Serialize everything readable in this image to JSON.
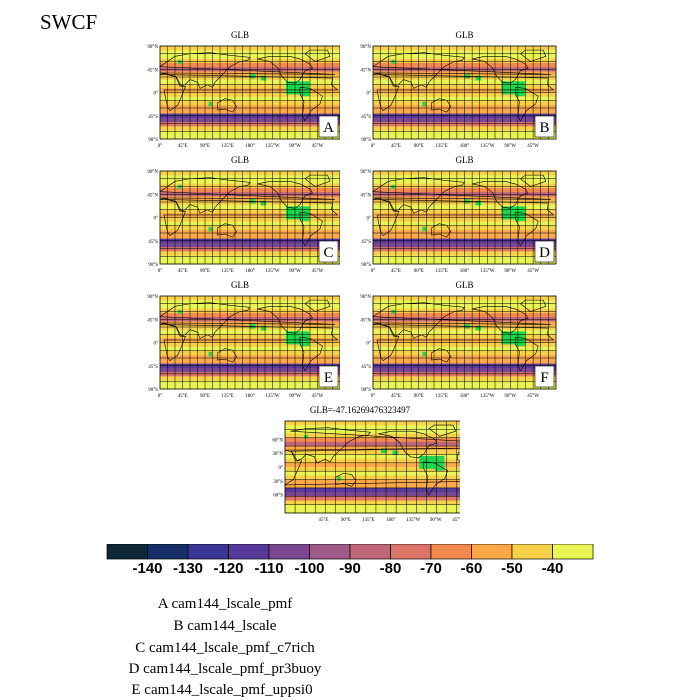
{
  "title": "SWCF",
  "panels": [
    {
      "id": "A",
      "title": "GLB",
      "letter": "A"
    },
    {
      "id": "B",
      "title": "GLB",
      "letter": "B"
    },
    {
      "id": "C",
      "title": "GLB",
      "letter": "C"
    },
    {
      "id": "D",
      "title": "GLB",
      "letter": "D"
    },
    {
      "id": "E",
      "title": "GLB",
      "letter": "E"
    },
    {
      "id": "F",
      "title": "GLB",
      "letter": "F"
    },
    {
      "id": "G",
      "title": "GLB=-47.16269476323497",
      "letter": ""
    }
  ],
  "lat_labels": [
    "90°N",
    "45°N",
    "0°",
    "45°S",
    "90°S"
  ],
  "lon_labels": [
    "0°",
    "45°E",
    "90°E",
    "135°E",
    "180°",
    "135°W",
    "90°W",
    "45°W"
  ],
  "g_lat_labels": [
    "60°N",
    "30°N",
    "0°",
    "30°S",
    "60°S"
  ],
  "g_lon_labels": [
    "45°E",
    "90°E",
    "135°E",
    "180°",
    "135°W",
    "90°W",
    "45°W"
  ],
  "colorbar": {
    "colors": [
      "#0e2836",
      "#162f66",
      "#3a3595",
      "#57399a",
      "#7a4793",
      "#9f5a87",
      "#c06679",
      "#dd7468",
      "#f28a4f",
      "#fba848",
      "#f7d148",
      "#e9f554"
    ],
    "labels": [
      "-140",
      "-130",
      "-120",
      "-110",
      "-100",
      "-90",
      "-80",
      "-70",
      "-60",
      "-50",
      "-40"
    ]
  },
  "legend": [
    "A  cam144_lscale_pmf",
    "B  cam144_lscale",
    "C  cam144_lscale_pmf_c7rich",
    "D  cam144_lscale_pmf_pr3buoy",
    "E  cam144_lscale_pmf_uppsi0"
  ]
}
